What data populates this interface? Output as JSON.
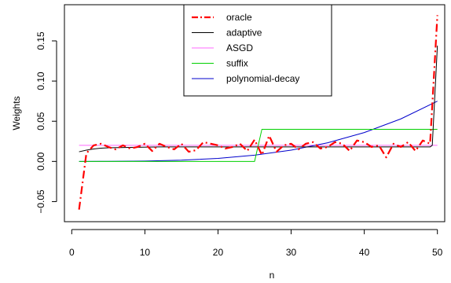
{
  "chart_data": {
    "type": "line",
    "xlabel": "n",
    "ylabel": "Weights",
    "xlim": [
      -1,
      51
    ],
    "ylim": [
      -0.075,
      0.195
    ],
    "xticks": [
      0,
      10,
      20,
      30,
      40,
      50
    ],
    "yticks": [
      -0.05,
      0.0,
      0.05,
      0.1,
      0.15
    ],
    "ytick_labels": [
      "−0.05",
      "0.00",
      "0.05",
      "0.10",
      "0.15"
    ],
    "legend_position": "top-center",
    "series": [
      {
        "name": "oracle",
        "color": "#ff0000",
        "dash": "dot-dash",
        "width": 2.2,
        "x": [
          1,
          2,
          3,
          4,
          5,
          6,
          7,
          8,
          9,
          10,
          11,
          12,
          13,
          14,
          15,
          16,
          17,
          18,
          19,
          20,
          21,
          22,
          23,
          24,
          25,
          26,
          27,
          28,
          29,
          30,
          31,
          32,
          33,
          34,
          35,
          36,
          37,
          38,
          39,
          40,
          41,
          42,
          43,
          44,
          45,
          46,
          47,
          48,
          49,
          50
        ],
        "y": [
          -0.06,
          0.01,
          0.02,
          0.022,
          0.018,
          0.015,
          0.02,
          0.016,
          0.018,
          0.022,
          0.013,
          0.022,
          0.018,
          0.015,
          0.022,
          0.012,
          0.014,
          0.024,
          0.022,
          0.02,
          0.016,
          0.018,
          0.022,
          0.013,
          0.027,
          0.008,
          0.032,
          0.012,
          0.02,
          0.022,
          0.015,
          0.022,
          0.024,
          0.016,
          0.018,
          0.024,
          0.022,
          0.013,
          0.026,
          0.024,
          0.018,
          0.02,
          0.005,
          0.022,
          0.018,
          0.024,
          0.013,
          0.026,
          0.022,
          0.182
        ]
      },
      {
        "name": "adaptive",
        "color": "#000000",
        "dash": "solid",
        "width": 1,
        "x": [
          1,
          2,
          3,
          4,
          5,
          8,
          12,
          20,
          30,
          40,
          48,
          49,
          49.3,
          50
        ],
        "y": [
          0.012,
          0.014,
          0.0155,
          0.0165,
          0.017,
          0.0175,
          0.018,
          0.018,
          0.018,
          0.018,
          0.018,
          0.018,
          0.02,
          0.144
        ]
      },
      {
        "name": "ASGD",
        "color": "#ff69ff",
        "dash": "solid",
        "width": 1,
        "x": [
          1,
          50
        ],
        "y": [
          0.02,
          0.02
        ]
      },
      {
        "name": "suffix",
        "color": "#00d000",
        "dash": "solid",
        "width": 1,
        "x": [
          1,
          25,
          26,
          50
        ],
        "y": [
          0.0,
          0.0,
          0.04,
          0.04
        ]
      },
      {
        "name": "polynomial-decay",
        "color": "#0000cc",
        "dash": "solid",
        "width": 1,
        "x": [
          1,
          5,
          10,
          15,
          20,
          25,
          30,
          35,
          40,
          45,
          50
        ],
        "y": [
          0.0,
          0.0001,
          0.0005,
          0.0015,
          0.0038,
          0.0078,
          0.014,
          0.0232,
          0.0359,
          0.0529,
          0.075
        ]
      }
    ]
  }
}
